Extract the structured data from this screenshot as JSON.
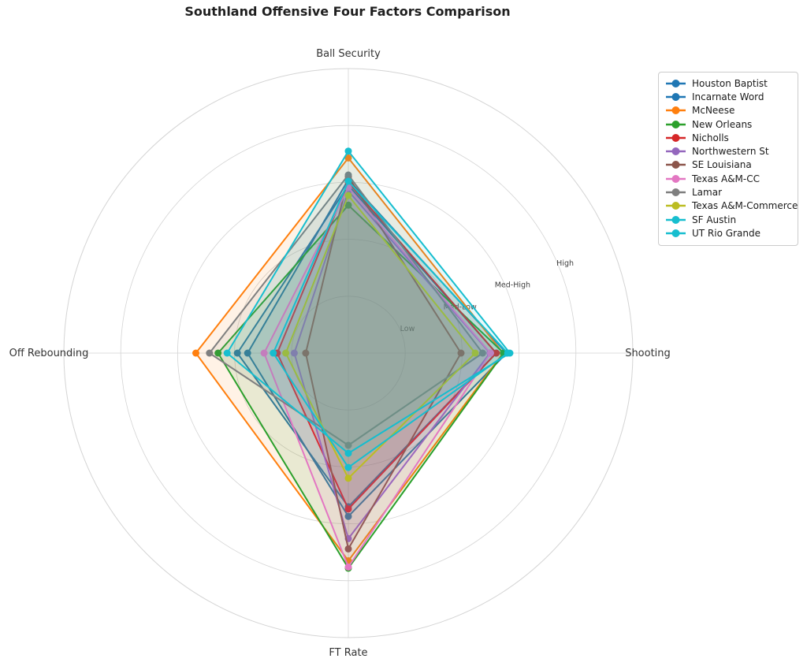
{
  "title": "Southland Offensive Four Factors Comparison",
  "colors": {
    "background": "#ffffff",
    "grid": "#d4d4d4",
    "tick_label": "#404040",
    "axis_label": "#333333",
    "title": "#1f1f1f",
    "legend_border": "#cccccc",
    "legend_text": "#1a1a1a"
  },
  "chart_data": {
    "type": "radar",
    "title": "Southland Offensive Four Factors Comparison",
    "axes": [
      "Ball Security",
      "Shooting",
      "FT Rate",
      "Off Rebounding"
    ],
    "scale": {
      "rmin": 0,
      "rmax": 5,
      "tick_values": [
        1,
        2,
        3,
        4
      ],
      "tick_labels": [
        "Low",
        "Med-Low",
        "Med-High",
        "High"
      ],
      "tick_label_angle_deg": 22.5
    },
    "grid": true,
    "legend_position": "upper right",
    "fill_opacity": 0.1,
    "series": [
      {
        "name": "Houston Baptist",
        "color": "#1f77b4",
        "values": [
          2.95,
          2.6,
          2.7,
          1.95
        ]
      },
      {
        "name": "Incarnate Word",
        "color": "#1f77b4",
        "values": [
          3.05,
          2.78,
          2.87,
          1.77
        ]
      },
      {
        "name": "McNeese",
        "color": "#ff7f0e",
        "values": [
          3.43,
          2.72,
          3.65,
          2.68
        ]
      },
      {
        "name": "New Orleans",
        "color": "#2ca02c",
        "values": [
          2.6,
          2.73,
          3.78,
          2.29
        ]
      },
      {
        "name": "Nicholls",
        "color": "#d62728",
        "values": [
          3.0,
          2.6,
          2.74,
          1.25
        ]
      },
      {
        "name": "Northwestern St",
        "color": "#9467bd",
        "values": [
          2.85,
          2.49,
          3.26,
          0.95
        ]
      },
      {
        "name": "SE Louisiana",
        "color": "#8c564b",
        "values": [
          3.1,
          1.98,
          3.44,
          0.75
        ]
      },
      {
        "name": "Texas A&M-CC",
        "color": "#e377c2",
        "values": [
          2.91,
          2.5,
          3.76,
          1.48
        ]
      },
      {
        "name": "Lamar",
        "color": "#7f7f7f",
        "values": [
          3.13,
          2.36,
          1.62,
          2.44
        ]
      },
      {
        "name": "Texas A&M-Commerce",
        "color": "#bcbd22",
        "values": [
          2.77,
          2.23,
          2.2,
          1.1
        ]
      },
      {
        "name": "SF Austin",
        "color": "#17becf",
        "values": [
          3.55,
          2.84,
          1.76,
          2.13
        ]
      },
      {
        "name": "UT Rio Grande",
        "color": "#17becf",
        "values": [
          3.02,
          2.8,
          2.01,
          1.32
        ]
      }
    ]
  }
}
